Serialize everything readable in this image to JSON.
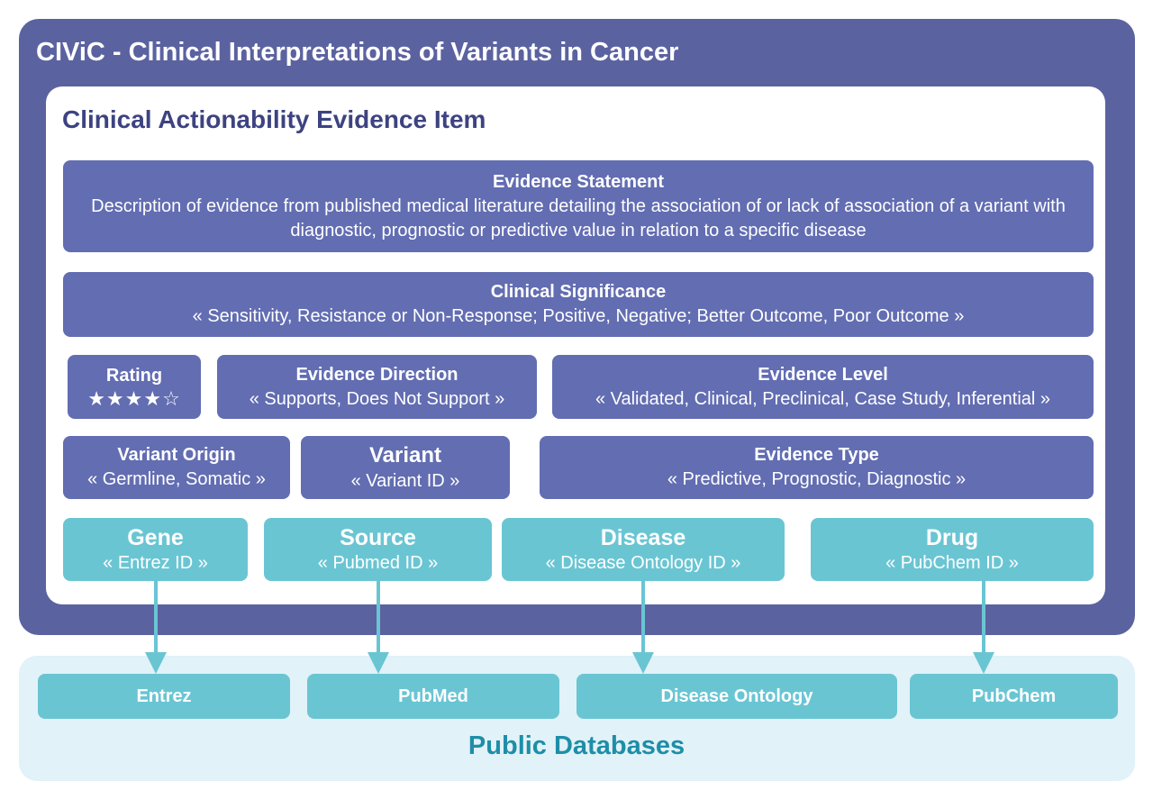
{
  "title": "CIViC - Clinical Interpretations of Variants in Cancer",
  "evidence_item": {
    "title": "Clinical Actionability Evidence Item",
    "statement": {
      "title": "Evidence Statement",
      "text": "Description of evidence from published medical literature detailing the association of or lack of association of a variant with diagnostic, prognostic or predictive value in relation to a specific disease"
    },
    "clinical_significance": {
      "title": "Clinical Significance",
      "text": "« Sensitivity, Resistance or Non-Response; Positive, Negative; Better Outcome, Poor Outcome  »"
    },
    "rating": {
      "title": "Rating",
      "stars": "★★★★☆"
    },
    "evidence_direction": {
      "title": "Evidence Direction",
      "text": "« Supports, Does Not Support »"
    },
    "evidence_level": {
      "title": "Evidence Level",
      "text": "« Validated, Clinical, Preclinical, Case Study, Inferential »"
    },
    "variant_origin": {
      "title": "Variant Origin",
      "text": "« Germline, Somatic »"
    },
    "variant": {
      "title": "Variant",
      "text": "« Variant ID »"
    },
    "evidence_type": {
      "title": "Evidence Type",
      "text": "« Predictive, Prognostic, Diagnostic »"
    },
    "gene": {
      "title": "Gene",
      "text": "« Entrez ID »"
    },
    "source": {
      "title": "Source",
      "text": "« Pubmed ID »"
    },
    "disease": {
      "title": "Disease",
      "text": "« Disease Ontology ID »"
    },
    "drug": {
      "title": "Drug",
      "text": "« PubChem ID »"
    }
  },
  "public_databases": {
    "title": "Public Databases",
    "items": [
      "Entrez",
      "PubMed",
      "Disease Ontology",
      "PubChem"
    ]
  },
  "colors": {
    "outer": "#5b62a0",
    "box": "#626db2",
    "inner_title": "#3d4380",
    "teal": "#6ac5d3",
    "db_panel": "#e1f2f8",
    "db_title": "#1e8ea8"
  }
}
